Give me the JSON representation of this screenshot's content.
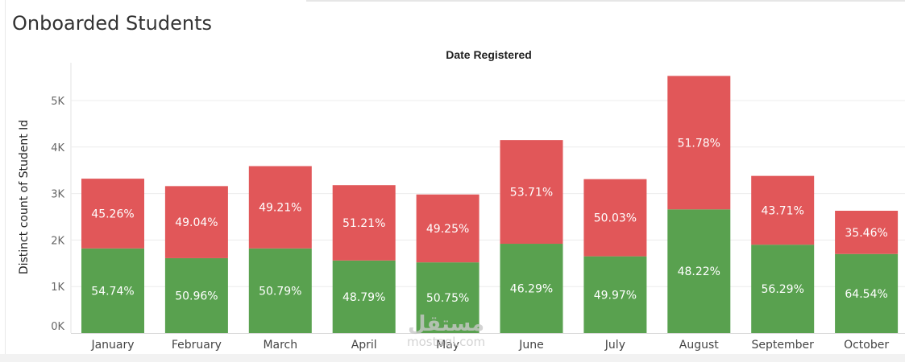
{
  "dashboard": {
    "title": "Onboarded Students"
  },
  "watermark": {
    "script_text": "مستقل",
    "domain_text": "mostaql.com"
  },
  "chart_data": {
    "type": "bar",
    "stacked": true,
    "title": "Date Registered",
    "xlabel": "",
    "ylabel": "Distinct count of Student Id",
    "ylim": [
      0,
      5700
    ],
    "y_ticks": [
      {
        "value": 0,
        "label": "0K"
      },
      {
        "value": 1000,
        "label": "1K"
      },
      {
        "value": 2000,
        "label": "2K"
      },
      {
        "value": 3000,
        "label": "3K"
      },
      {
        "value": 4000,
        "label": "4K"
      },
      {
        "value": 5000,
        "label": "5K"
      }
    ],
    "grid": true,
    "categories": [
      "January",
      "February",
      "March",
      "April",
      "May",
      "June",
      "July",
      "August",
      "September",
      "October"
    ],
    "series": [
      {
        "color": "#59a14f",
        "values": [
          1820,
          1610,
          1820,
          1560,
          1520,
          1920,
          1650,
          2660,
          1900,
          1700
        ],
        "labels": [
          "54.74%",
          "50.96%",
          "50.79%",
          "48.79%",
          "50.75%",
          "46.29%",
          "49.97%",
          "48.22%",
          "56.29%",
          "64.54%"
        ]
      },
      {
        "color": "#e15759",
        "values": [
          1500,
          1550,
          1770,
          1620,
          1460,
          2230,
          1660,
          2870,
          1480,
          930
        ],
        "labels": [
          "45.26%",
          "49.04%",
          "49.21%",
          "51.21%",
          "49.25%",
          "53.71%",
          "50.03%",
          "51.78%",
          "43.71%",
          "35.46%"
        ]
      }
    ]
  }
}
